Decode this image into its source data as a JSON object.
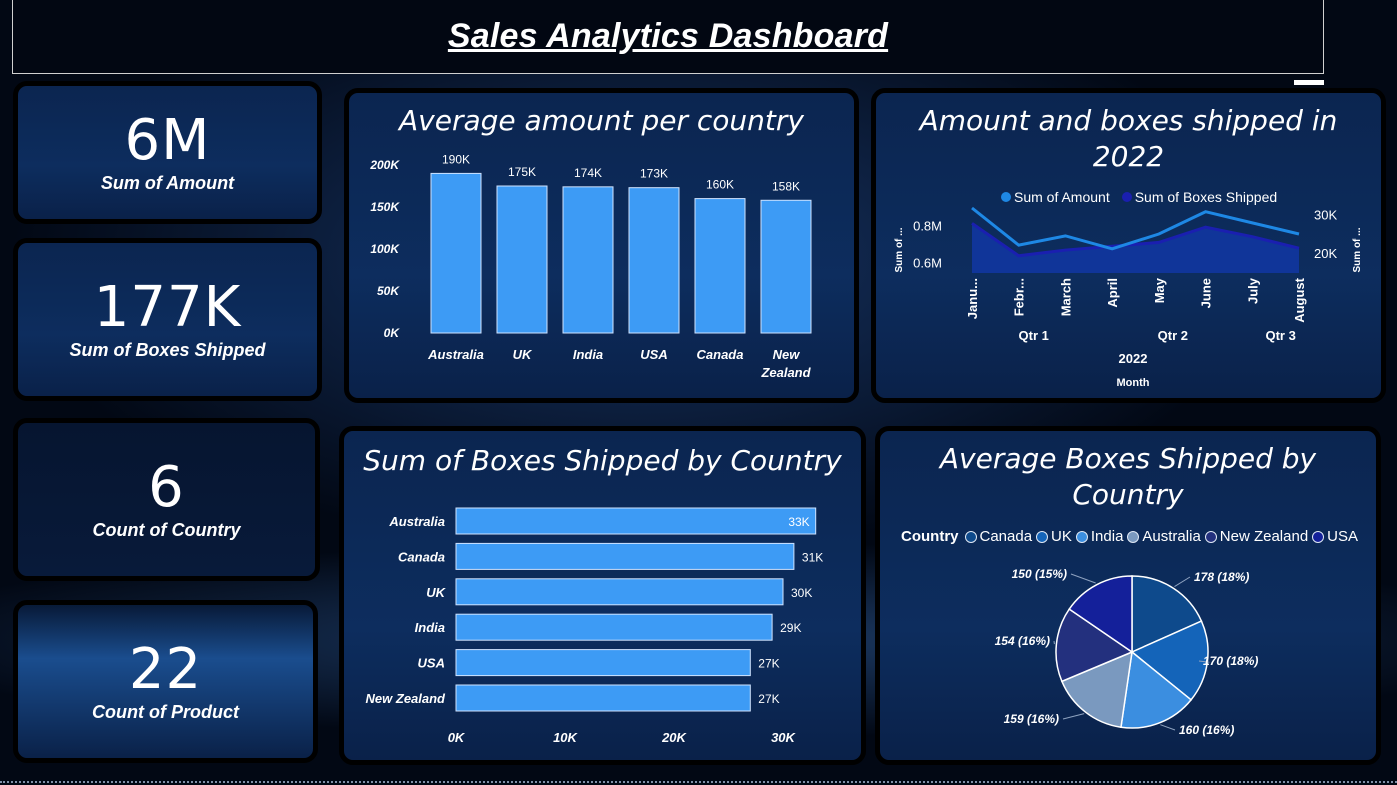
{
  "dashboard": {
    "title": "Sales Analytics Dashboard"
  },
  "kpis": [
    {
      "value": "6M",
      "label": "Sum of Amount"
    },
    {
      "value": "177K",
      "label": "Sum of Boxes Shipped"
    },
    {
      "value": "6",
      "label": "Count of Country"
    },
    {
      "value": "22",
      "label": "Count of Product"
    }
  ],
  "colors": {
    "bar": "#3d9bf5",
    "line_amount": "#1e88e5",
    "line_boxes": "#1a1fb0",
    "area_fill": "#1136a0"
  },
  "chart_data": [
    {
      "id": "avg_amount_country",
      "type": "bar",
      "title": "Average amount per country",
      "categories": [
        "Australia",
        "UK",
        "India",
        "USA",
        "Canada",
        "New Zealand"
      ],
      "values": [
        190000,
        175000,
        174000,
        173000,
        160000,
        158000
      ],
      "data_labels": [
        "190K",
        "175K",
        "174K",
        "173K",
        "160K",
        "158K"
      ],
      "yticks": [
        "0K",
        "50K",
        "100K",
        "150K",
        "200K"
      ],
      "ylim": [
        0,
        200000
      ],
      "grid": false
    },
    {
      "id": "amount_boxes_2022",
      "type": "line",
      "title": "Amount and boxes shipped in 2022",
      "x": [
        "January",
        "February",
        "March",
        "April",
        "May",
        "June",
        "July",
        "August"
      ],
      "x_tick_labels": [
        "Janu...",
        "Febr...",
        "March",
        "April",
        "May",
        "June",
        "July",
        "August"
      ],
      "x_groups": [
        "Qtr 1",
        "Qtr 2",
        "Qtr 3"
      ],
      "x_year": "2022",
      "xlabel": "Month",
      "ylabel_left": "Sum of ...",
      "ylabel_right": "Sum of ...",
      "left_ticks": [
        "0.6M",
        "0.8M"
      ],
      "right_ticks": [
        "20K",
        "30K"
      ],
      "left_ylim": [
        550000,
        900000
      ],
      "right_ylim": [
        15000,
        32000
      ],
      "series": [
        {
          "name": "Sum of Amount",
          "axis": "left",
          "values": [
            900000,
            700000,
            750000,
            680000,
            760000,
            880000,
            820000,
            760000
          ]
        },
        {
          "name": "Sum of Boxes Shipped",
          "axis": "right",
          "values": [
            28000,
            19500,
            21000,
            22000,
            23000,
            27000,
            24500,
            21500
          ]
        }
      ],
      "legend": "top"
    },
    {
      "id": "boxes_by_country",
      "type": "bar",
      "orientation": "horizontal",
      "title": "Sum of Boxes Shipped by Country",
      "categories": [
        "Australia",
        "Canada",
        "UK",
        "India",
        "USA",
        "New Zealand"
      ],
      "values": [
        33000,
        31000,
        30000,
        29000,
        27000,
        27000
      ],
      "data_labels": [
        "33K",
        "31K",
        "30K",
        "29K",
        "27K",
        "27K"
      ],
      "xticks": [
        "0K",
        "10K",
        "20K",
        "30K"
      ],
      "xlim": [
        0,
        30000
      ]
    },
    {
      "id": "avg_boxes_country",
      "type": "pie",
      "title": "Average Boxes Shipped by Country",
      "legend_title": "Country",
      "legend_items": [
        "Canada",
        "UK",
        "India",
        "Australia",
        "New Zealand",
        "USA"
      ],
      "slices": [
        {
          "name": "Canada",
          "value": 178,
          "label": "178 (18%)",
          "color": "#0e4a8c"
        },
        {
          "name": "UK",
          "value": 170,
          "label": "170 (18%)",
          "color": "#1464b9"
        },
        {
          "name": "India",
          "value": 160,
          "label": "160 (16%)",
          "color": "#3b8ee0"
        },
        {
          "name": "Australia",
          "value": 159,
          "label": "159 (16%)",
          "color": "#7a99bf"
        },
        {
          "name": "New Zealand",
          "value": 154,
          "label": "154 (16%)",
          "color": "#23307e"
        },
        {
          "name": "USA",
          "value": 150,
          "label": "150 (15%)",
          "color": "#14209a"
        }
      ]
    }
  ]
}
